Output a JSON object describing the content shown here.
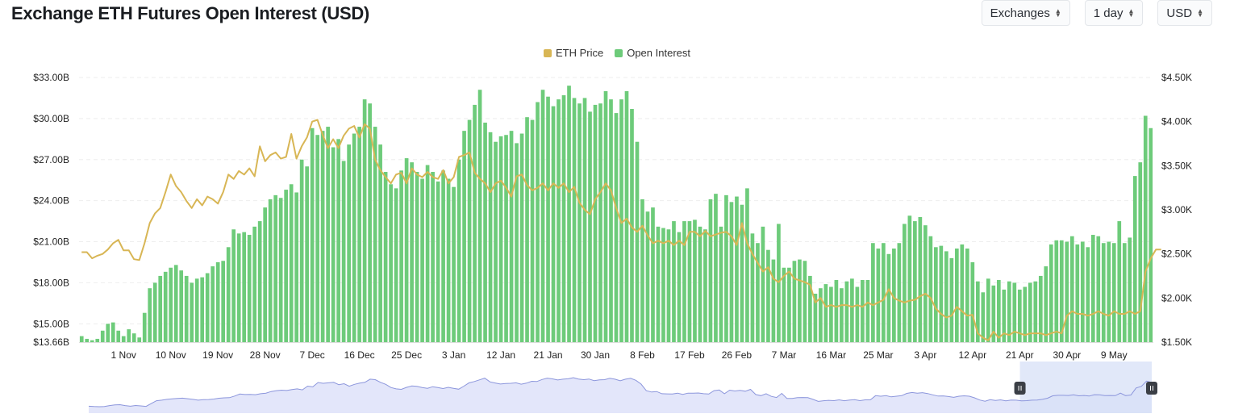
{
  "header": {
    "title": "Exchange ETH Futures Open Interest (USD)",
    "controls": [
      {
        "label": "Exchanges"
      },
      {
        "label": "1 day"
      },
      {
        "label": "USD"
      }
    ]
  },
  "colors": {
    "price": "#d8b655",
    "open_interest": "#6dcb7a",
    "navigator_fill": "#e3e6fa",
    "navigator_line": "#8c96dc",
    "navigator_selection": "#d7e0f7"
  },
  "chart_data": {
    "type": "bar",
    "title": "Exchange ETH Futures Open Interest (USD)",
    "legend": {
      "position": "top-center",
      "entries": [
        "ETH Price",
        "Open Interest"
      ]
    },
    "x_tick_labels": [
      "1 Nov",
      "10 Nov",
      "19 Nov",
      "28 Nov",
      "7 Dec",
      "16 Dec",
      "25 Dec",
      "3 Jan",
      "12 Jan",
      "21 Jan",
      "30 Jan",
      "8 Feb",
      "17 Feb",
      "26 Feb",
      "7 Mar",
      "16 Mar",
      "25 Mar",
      "3 Apr",
      "12 Apr",
      "21 Apr",
      "30 Apr",
      "9 May"
    ],
    "x_tick_start_index": 8,
    "x_tick_step": 9,
    "y_left": {
      "ticks": [
        "$33.00B",
        "$30.00B",
        "$27.00B",
        "$24.00B",
        "$21.00B",
        "$18.00B",
        "$15.00B",
        "$13.66B"
      ],
      "tick_values": [
        33,
        30,
        27,
        24,
        21,
        18,
        15,
        13.66
      ],
      "range": [
        13.66,
        33
      ]
    },
    "y_right": {
      "ticks": [
        "$4.50K",
        "$4.00K",
        "$3.50K",
        "$3.00K",
        "$2.50K",
        "$2.00K",
        "$1.50K"
      ],
      "tick_values": [
        4.5,
        4.0,
        3.5,
        3.0,
        2.5,
        2.0,
        1.5
      ],
      "range": [
        1.5,
        4.5
      ]
    },
    "series": [
      {
        "name": "Open Interest",
        "type": "bar",
        "axis": "left",
        "unit": "B USD",
        "values": [
          14.1,
          13.9,
          13.8,
          13.9,
          14.5,
          15.0,
          15.1,
          14.5,
          14.1,
          14.6,
          14.3,
          14.0,
          15.8,
          17.6,
          18.0,
          18.5,
          18.8,
          19.1,
          19.3,
          18.9,
          18.5,
          18.0,
          18.3,
          18.4,
          18.7,
          19.2,
          19.5,
          19.6,
          20.6,
          21.9,
          21.6,
          21.7,
          21.5,
          22.1,
          22.5,
          23.5,
          24.1,
          24.4,
          24.2,
          24.8,
          25.2,
          24.6,
          27.0,
          26.5,
          29.3,
          28.8,
          29.1,
          29.4,
          27.9,
          28.5,
          26.9,
          28.1,
          28.9,
          29.4,
          31.4,
          31.1,
          29.4,
          28.1,
          26.1,
          25.2,
          24.9,
          26.2,
          27.1,
          26.8,
          26.1,
          25.6,
          26.6,
          26.1,
          25.4,
          26.2,
          25.6,
          25.0,
          27.0,
          29.1,
          29.9,
          31.0,
          32.1,
          29.7,
          29.0,
          28.3,
          28.7,
          28.8,
          29.1,
          28.2,
          28.9,
          30.1,
          29.9,
          31.2,
          32.1,
          31.6,
          30.9,
          31.4,
          31.7,
          32.4,
          31.5,
          31.1,
          31.5,
          30.5,
          31.0,
          31.1,
          32.0,
          31.4,
          30.4,
          31.4,
          32.0,
          30.7,
          28.3,
          24.1,
          23.2,
          23.5,
          22.1,
          22.0,
          21.9,
          22.5,
          21.7,
          22.5,
          22.5,
          22.6,
          22.1,
          21.9,
          24.1,
          24.5,
          22.1,
          24.4,
          23.9,
          24.3,
          23.7,
          24.9,
          21.6,
          20.9,
          22.1,
          20.4,
          19.7,
          22.3,
          19.1,
          19.1,
          19.6,
          19.7,
          19.6,
          18.5,
          17.2,
          17.6,
          17.9,
          17.7,
          18.2,
          17.6,
          18.1,
          18.3,
          17.7,
          18.2,
          18.2,
          20.9,
          20.5,
          20.9,
          20.1,
          20.5,
          20.9,
          22.3,
          22.9,
          22.5,
          22.8,
          22.2,
          21.4,
          20.6,
          20.7,
          20.3,
          19.8,
          20.5,
          20.8,
          20.5,
          19.5,
          18.1,
          17.3,
          18.3,
          17.8,
          18.2,
          17.5,
          18.1,
          18.0,
          17.5,
          17.7,
          18.0,
          18.1,
          18.5,
          19.2,
          20.8,
          21.1,
          21.1,
          21.0,
          21.4,
          20.8,
          21.0,
          20.6,
          21.5,
          21.4,
          20.9,
          21.0,
          20.9,
          22.5,
          20.9,
          21.3,
          25.8,
          26.8,
          30.2,
          29.3
        ]
      },
      {
        "name": "ETH Price",
        "type": "line",
        "axis": "right",
        "unit": "K USD",
        "values": [
          2.52,
          2.52,
          2.45,
          2.48,
          2.5,
          2.55,
          2.62,
          2.66,
          2.54,
          2.54,
          2.44,
          2.43,
          2.62,
          2.85,
          2.96,
          3.02,
          3.2,
          3.4,
          3.27,
          3.2,
          3.1,
          3.02,
          3.12,
          3.05,
          3.15,
          3.12,
          3.07,
          3.2,
          3.4,
          3.35,
          3.44,
          3.4,
          3.47,
          3.38,
          3.72,
          3.55,
          3.62,
          3.65,
          3.58,
          3.6,
          3.86,
          3.58,
          3.72,
          3.82,
          4.0,
          4.02,
          3.85,
          3.7,
          3.8,
          3.7,
          3.84,
          3.92,
          3.95,
          3.82,
          3.97,
          3.92,
          3.57,
          3.45,
          3.37,
          3.3,
          3.4,
          3.42,
          3.3,
          3.47,
          3.4,
          3.37,
          3.43,
          3.37,
          3.35,
          3.45,
          3.3,
          3.37,
          3.6,
          3.62,
          3.65,
          3.42,
          3.35,
          3.3,
          3.2,
          3.3,
          3.33,
          3.25,
          3.15,
          3.38,
          3.4,
          3.28,
          3.22,
          3.25,
          3.3,
          3.22,
          3.3,
          3.25,
          3.3,
          3.2,
          3.26,
          3.08,
          3.0,
          2.95,
          3.12,
          3.2,
          3.3,
          3.22,
          3.02,
          2.85,
          2.9,
          2.8,
          2.75,
          2.82,
          2.71,
          2.62,
          2.65,
          2.62,
          2.65,
          2.6,
          2.65,
          2.6,
          2.75,
          2.75,
          2.7,
          2.76,
          2.7,
          2.72,
          2.74,
          2.75,
          2.7,
          2.6,
          2.85,
          2.62,
          2.5,
          2.4,
          2.3,
          2.35,
          2.22,
          2.18,
          2.25,
          2.3,
          2.22,
          2.2,
          2.18,
          2.15,
          1.95,
          2.0,
          1.9,
          1.92,
          1.9,
          1.92,
          1.92,
          1.9,
          1.92,
          1.9,
          1.95,
          1.92,
          1.95,
          1.98,
          2.1,
          2.0,
          1.97,
          1.95,
          1.97,
          1.98,
          2.02,
          2.05,
          2.0,
          1.88,
          1.82,
          1.78,
          1.8,
          1.9,
          1.85,
          1.8,
          1.81,
          1.6,
          1.55,
          1.52,
          1.62,
          1.55,
          1.6,
          1.58,
          1.62,
          1.6,
          1.58,
          1.6,
          1.6,
          1.6,
          1.58,
          1.6,
          1.62,
          1.6,
          1.8,
          1.85,
          1.82,
          1.82,
          1.8,
          1.82,
          1.85,
          1.82,
          1.8,
          1.85,
          1.82,
          1.82,
          1.85,
          1.82,
          1.85,
          2.3,
          2.45,
          2.55,
          2.55
        ]
      }
    ],
    "navigator": {
      "selection_start_fraction": 0.876,
      "selection_end_fraction": 1.0
    }
  }
}
